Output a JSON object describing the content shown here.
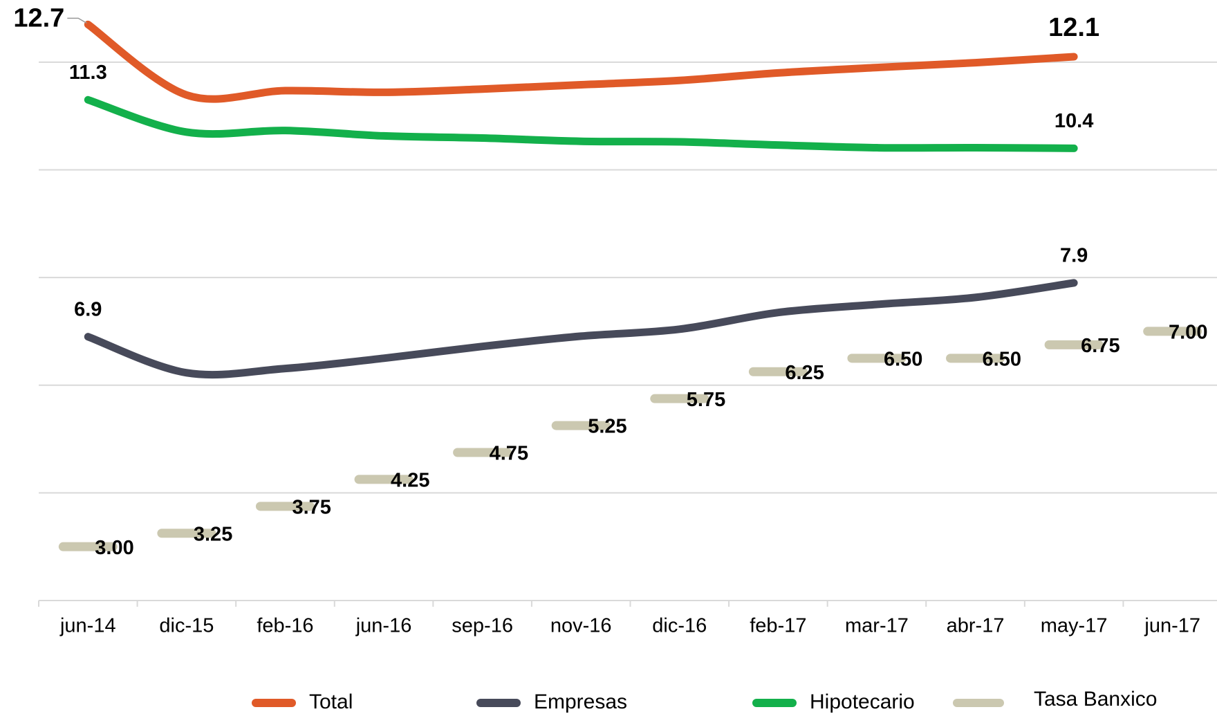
{
  "chart_data": {
    "type": "line",
    "categories": [
      "jun-14",
      "dic-15",
      "feb-16",
      "jun-16",
      "sep-16",
      "nov-16",
      "dic-16",
      "feb-17",
      "mar-17",
      "abr-17",
      "may-17",
      "jun-17"
    ],
    "ylim": [
      2,
      13
    ],
    "yticks": [
      2,
      4,
      6,
      8,
      10,
      12
    ],
    "grid": true,
    "legend": "bottom",
    "series": [
      {
        "name": "Total",
        "color": "#e05a28",
        "data_labels": "ends",
        "values": [
          12.7,
          11.39,
          11.47,
          11.44,
          11.5,
          11.58,
          11.66,
          11.8,
          11.9,
          11.99,
          12.1,
          null
        ]
      },
      {
        "name": "Empresas",
        "color": "#474a5a",
        "data_labels": "ends",
        "values": [
          6.9,
          6.23,
          6.31,
          6.5,
          6.72,
          6.91,
          7.04,
          7.35,
          7.5,
          7.63,
          7.9,
          null
        ]
      },
      {
        "name": "Hipotecario",
        "color": "#13b04b",
        "data_labels": "ends",
        "values": [
          11.3,
          10.7,
          10.73,
          10.63,
          10.59,
          10.53,
          10.52,
          10.46,
          10.41,
          10.41,
          10.4,
          null
        ]
      },
      {
        "name": "Tasa Banxico",
        "color": "#cbc8b0",
        "style": "dash",
        "data_labels": "all",
        "values": [
          3.0,
          3.25,
          3.75,
          4.25,
          4.75,
          5.25,
          5.75,
          6.25,
          6.5,
          6.5,
          6.75,
          7.0
        ],
        "value_labels": [
          "3.00",
          "3.25",
          "3.75",
          "4.25",
          "4.75",
          "5.25",
          "5.75",
          "6.25",
          "6.50",
          "6.50",
          "6.75",
          "7.00"
        ]
      }
    ]
  }
}
